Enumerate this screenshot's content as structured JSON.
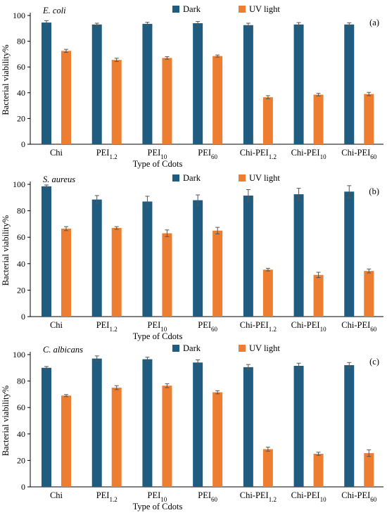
{
  "chart_data": [
    {
      "type": "bar",
      "organism": "E. coli",
      "panel_label": "(a)",
      "categories": [
        "Chi",
        "PEI1.2",
        "PEI10",
        "PEI60",
        "Chi-PEI1.2",
        "Chi-PEI10",
        "Chi-PEI60"
      ],
      "series": [
        {
          "name": "Dark",
          "color": "#1f5c80",
          "values": [
            94.5,
            93,
            93.5,
            94,
            92.5,
            93,
            93
          ],
          "errors": [
            1.5,
            1,
            1.2,
            1.3,
            1.5,
            1.5,
            1.3
          ]
        },
        {
          "name": "UV light",
          "color": "#ed7d31",
          "values": [
            72.5,
            65.5,
            67,
            68.5,
            36.5,
            38.5,
            39
          ],
          "errors": [
            1.2,
            1.3,
            1,
            0.8,
            1.2,
            1,
            1.3
          ]
        }
      ],
      "xlabel": "Type of Cdots",
      "ylabel": "Bacterial viability%",
      "ylim": [
        0,
        100
      ],
      "yticks": [
        0,
        20,
        40,
        60,
        80,
        100
      ]
    },
    {
      "type": "bar",
      "organism": "S. aureus",
      "panel_label": "(b)",
      "categories": [
        "Chi",
        "PEI1.2",
        "PEI10",
        "PEI60",
        "Chi-PEI1.2",
        "Chi-PEI10",
        "Chi-PEI60"
      ],
      "series": [
        {
          "name": "Dark",
          "color": "#1f5c80",
          "values": [
            98.5,
            88.5,
            87,
            88,
            91.5,
            92.5,
            94.5
          ],
          "errors": [
            1,
            3,
            4,
            4,
            4.5,
            4.5,
            4.5
          ]
        },
        {
          "name": "UV light",
          "color": "#ed7d31",
          "values": [
            66.5,
            67,
            63,
            65,
            35.5,
            31.5,
            34.5
          ],
          "errors": [
            1.5,
            1,
            2.5,
            2.5,
            1,
            2,
            1.5
          ]
        }
      ],
      "xlabel": "Type of Cdots",
      "ylabel": "Bacterial viability%",
      "ylim": [
        0,
        100
      ],
      "yticks": [
        0,
        20,
        40,
        60,
        80,
        100
      ]
    },
    {
      "type": "bar",
      "organism": "C. albicans",
      "panel_label": "(c)",
      "categories": [
        "Chi",
        "PEI1.2",
        "PEI10",
        "PEI60",
        "Chi-PEI1.2",
        "Chi-PEI10",
        "Chi-PEI60"
      ],
      "series": [
        {
          "name": "Dark",
          "color": "#1f5c80",
          "values": [
            90,
            97,
            96.5,
            94,
            90.5,
            91.5,
            92
          ],
          "errors": [
            1,
            2,
            1.5,
            2,
            2,
            2,
            2
          ]
        },
        {
          "name": "UV light",
          "color": "#ed7d31",
          "values": [
            69,
            75,
            76.5,
            71.5,
            28.5,
            25,
            25.5
          ],
          "errors": [
            0.8,
            1.5,
            1.5,
            1.2,
            1.5,
            1.2,
            2.5
          ]
        }
      ],
      "xlabel": "Type of Cdots",
      "ylabel": "Bacterial viability%",
      "ylim": [
        0,
        100
      ],
      "yticks": [
        0,
        20,
        40,
        60,
        80,
        100
      ]
    }
  ]
}
